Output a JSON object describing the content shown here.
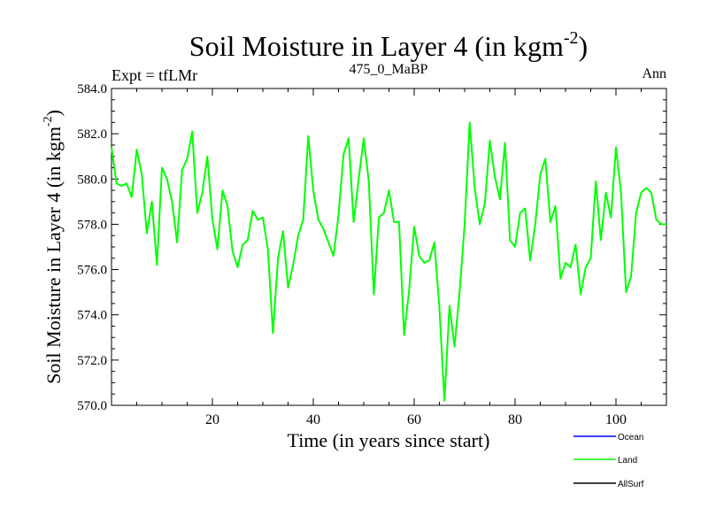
{
  "chart_data": {
    "type": "line",
    "title_main": "Soil Moisture in Layer 4 (in kgm",
    "title_exp": "-2",
    "title_close": ")",
    "subtitle_left": "Expt = tfLMr",
    "subtitle_center": "475_0_MaBP",
    "subtitle_right": "Ann",
    "xlabel": "Time (in years since start)",
    "ylabel_main": "Soil Moisture in Layer 4 (in kgm",
    "ylabel_exp": "-2",
    "ylabel_close": ")",
    "xlim": [
      0,
      110
    ],
    "ylim": [
      570,
      584
    ],
    "xticks": [
      20,
      40,
      60,
      80,
      100
    ],
    "yticks": [
      "570.0",
      "572.0",
      "574.0",
      "576.0",
      "578.0",
      "580.0",
      "582.0",
      "584.0"
    ],
    "legend": [
      {
        "name": "Ocean",
        "color": "#0000ff"
      },
      {
        "name": "Land",
        "color": "#00ff00"
      },
      {
        "name": "AllSurf",
        "color": "#000000"
      }
    ],
    "series": [
      {
        "name": "Land",
        "color": "#00ff00",
        "x": [
          0,
          1,
          2,
          3,
          4,
          5,
          6,
          7,
          8,
          9,
          10,
          11,
          12,
          13,
          14,
          15,
          16,
          17,
          18,
          19,
          20,
          21,
          22,
          23,
          24,
          25,
          26,
          27,
          28,
          29,
          30,
          31,
          32,
          33,
          34,
          35,
          36,
          37,
          38,
          39,
          40,
          41,
          42,
          43,
          44,
          45,
          46,
          47,
          48,
          49,
          50,
          51,
          52,
          53,
          54,
          55,
          56,
          57,
          58,
          59,
          60,
          61,
          62,
          63,
          64,
          65,
          66,
          67,
          68,
          69,
          70,
          71,
          72,
          73,
          74,
          75,
          76,
          77,
          78,
          79,
          80,
          81,
          82,
          83,
          84,
          85,
          86,
          87,
          88,
          89,
          90,
          91,
          92,
          93,
          94,
          95,
          96,
          97,
          98,
          99,
          100,
          101,
          102,
          103,
          104,
          105,
          106,
          107,
          108,
          109,
          110
        ],
        "y": [
          581.4,
          579.8,
          579.7,
          579.8,
          579.2,
          581.3,
          580.2,
          577.6,
          579.0,
          576.2,
          580.5,
          580.0,
          579.0,
          577.2,
          580.4,
          580.9,
          582.1,
          578.5,
          579.4,
          581.0,
          578.2,
          576.9,
          579.5,
          578.8,
          576.8,
          576.1,
          577.1,
          577.3,
          578.6,
          578.2,
          578.3,
          576.9,
          573.2,
          576.5,
          577.7,
          575.2,
          576.2,
          577.5,
          578.2,
          581.9,
          579.5,
          578.2,
          577.8,
          577.2,
          576.6,
          578.4,
          581.1,
          581.8,
          578.1,
          580.0,
          581.8,
          579.9,
          574.9,
          578.3,
          578.5,
          579.5,
          578.1,
          578.1,
          573.1,
          575.1,
          577.9,
          576.6,
          576.3,
          576.4,
          577.2,
          574.3,
          570.2,
          574.4,
          572.6,
          575.0,
          578.0,
          582.5,
          579.6,
          578.0,
          578.9,
          581.7,
          580.1,
          579.1,
          581.6,
          577.3,
          577.0,
          578.5,
          578.7,
          576.4,
          578.0,
          580.2,
          580.9,
          578.1,
          578.8,
          575.6,
          576.3,
          576.1,
          577.1,
          574.9,
          576.1,
          576.5,
          579.9,
          577.3,
          579.4,
          578.3,
          581.4,
          579.4,
          575.0,
          575.7,
          578.5,
          579.4,
          579.6,
          579.4,
          578.2,
          578.0,
          578.0
        ]
      }
    ]
  }
}
